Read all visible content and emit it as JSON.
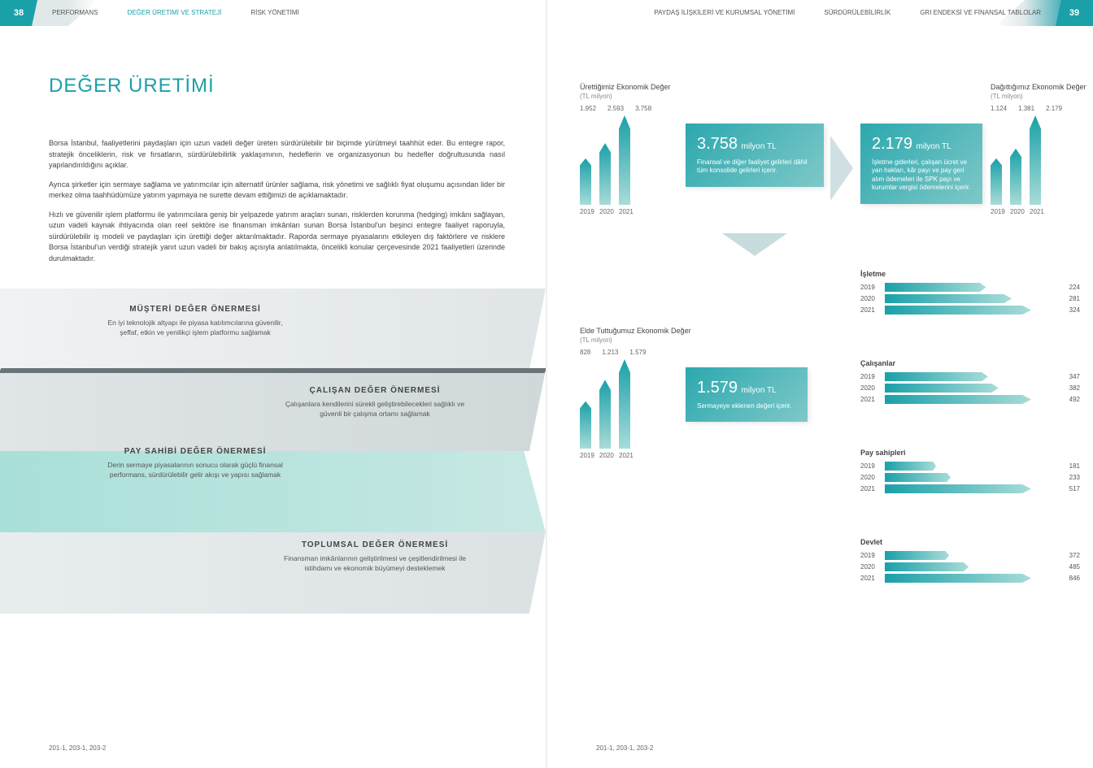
{
  "colors": {
    "primary": "#1aa0a8",
    "grad1": "#2ba8ae",
    "grad2": "#7fc8c8",
    "bar1": "#1aa0a8",
    "bar2": "#a8dcd8",
    "text": "#444",
    "muted": "#888"
  },
  "leftPage": {
    "num": "38",
    "nav": [
      "PERFORMANS",
      "DEĞER ÜRETİMİ VE STRATEJİ",
      "RİSK YÖNETİMİ"
    ],
    "title": "DEĞER ÜRETİMİ",
    "p1": "Borsa İstanbul, faaliyetlerini paydaşları için uzun vadeli değer üreten sürdürülebilir bir biçimde yürütmeyi taahhüt eder. Bu entegre rapor, stratejik önceliklerin, risk ve fırsatların, sürdürülebilirlik yaklaşımının, hedeflerin ve organizasyonun bu hedefler doğrultusunda nasıl yapılandırıldığını açıklar.",
    "p2": "Ayrıca şirketler için sermaye sağlama ve yatırımcılar için alternatif ürünler sağlama, risk yönetimi ve sağlıklı fiyat oluşumu açısından lider bir merkez olma taahhüdümüze yatırım yapmaya ne surette devam ettiğimizi de açıklamaktadır.",
    "p3": "Hızlı ve güvenilir işlem platformu ile yatırımcılara geniş bir yelpazede yatırım araçları sunan, risklerden korunma (hedging) imkânı sağlayan, uzun vadeli kaynak ihtiyacında olan reel sektöre ise finansman imkânları sunan Borsa İstanbul'un beşinci entegre faaliyet raporuyla, sürdürülebilir iş modeli ve paydaşları için ürettiği değer aktarılmaktadır. Raporda sermaye piyasalarını etkileyen dış faktörlere ve risklere Borsa İstanbul'un verdiği stratejik yanıt uzun vadeli bir bakış açısıyla anlatılmakta, öncelikli konular çerçevesinde 2021 faaliyetleri üzerinde durulmaktadır.",
    "vp1": {
      "h": "MÜŞTERİ DEĞER ÖNERMESİ",
      "t": "En iyi teknolojik altyapı ile piyasa katılımcılarına güvenilir, şeffaf, etkin ve yenilikçi işlem platformu sağlamak"
    },
    "vp2": {
      "h": "ÇALIŞAN DEĞER ÖNERMESİ",
      "t": "Çalışanlara kendilerini sürekli geliştirebilecekleri sağlıklı ve güvenli bir çalışma ortamı sağlamak"
    },
    "vp3": {
      "h": "PAY SAHİBİ DEĞER ÖNERMESİ",
      "t": "Derin sermaye piyasalarının sonucu olarak güçlü finansal performans, sürdürülebilir gelir akışı ve yapısı sağlamak"
    },
    "vp4": {
      "h": "TOPLUMSAL DEĞER ÖNERMESİ",
      "t": "Finansman imkânlarının geliştirilmesi ve çeşitlendirilmesi ile istihdamı ve ekonomik büyümeyi desteklemek"
    },
    "footer": "201-1, 203-1, 203-2"
  },
  "rightPage": {
    "num": "39",
    "nav": [
      "PAYDAŞ İLİŞKİLERİ VE KURUMSAL YÖNETİMİ",
      "SÜRDÜRÜLEBİLİRLİK",
      "GRI ENDEKSİ VE FİNANSAL TABLOLAR"
    ],
    "chart1": {
      "title": "Ürettiğimiz Ekonomik Değer",
      "sub": "(TL milyon)",
      "years": [
        "2019",
        "2020",
        "2021"
      ],
      "vals": [
        "1.952",
        "2.593",
        "3.758"
      ],
      "heights": [
        52,
        69,
        100
      ]
    },
    "chart2": {
      "title": "Dağıttığımız Ekonomik Değer",
      "sub": "(TL milyon)",
      "years": [
        "2019",
        "2020",
        "2021"
      ],
      "vals": [
        "1.124",
        "1.381",
        "2.179"
      ],
      "heights": [
        52,
        63,
        100
      ]
    },
    "chart3": {
      "title": "Elde Tuttuğumuz Ekonomik Değer",
      "sub": "(TL milyon)",
      "years": [
        "2019",
        "2020",
        "2021"
      ],
      "vals": [
        "828",
        "1.213",
        "1.579"
      ],
      "heights": [
        53,
        77,
        100
      ]
    },
    "box1": {
      "num": "3.758",
      "unit": "milyon TL",
      "desc": "Finansal ve diğer faaliyet gelirleri dâhil tüm konsolide gelirleri içerir."
    },
    "box2": {
      "num": "2.179",
      "unit": "milyon TL",
      "desc": "İşletme giderleri, çalışan ücret ve yan hakları, kâr payı ve pay geri alım ödemeleri ile SPK payı ve kurumlar vergisi ödemelerini içerir."
    },
    "box3": {
      "num": "1.579",
      "unit": "milyon TL",
      "desc": "Sermayeye eklenen değeri içerir."
    },
    "cats": [
      {
        "name": "İşletme",
        "rows": [
          [
            "2019",
            224,
            69
          ],
          [
            "2020",
            281,
            87
          ],
          [
            "2021",
            324,
            100
          ]
        ],
        "max": 324
      },
      {
        "name": "Çalışanlar",
        "rows": [
          [
            "2019",
            347,
            71
          ],
          [
            "2020",
            382,
            78
          ],
          [
            "2021",
            492,
            100
          ]
        ],
        "max": 492
      },
      {
        "name": "Pay sahipleri",
        "rows": [
          [
            "2019",
            181,
            35
          ],
          [
            "2020",
            233,
            45
          ],
          [
            "2021",
            517,
            100
          ]
        ],
        "max": 517
      },
      {
        "name": "Devlet",
        "rows": [
          [
            "2019",
            372,
            44
          ],
          [
            "2020",
            485,
            57
          ],
          [
            "2021",
            846,
            100
          ]
        ],
        "max": 846
      }
    ],
    "footer": "201-1, 203-1, 203-2"
  }
}
